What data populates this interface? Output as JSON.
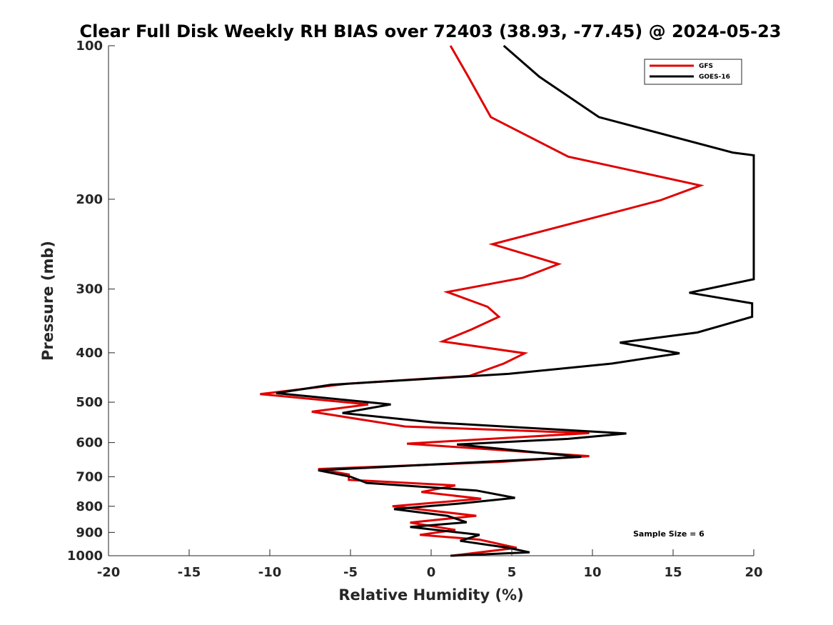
{
  "chart_data": {
    "type": "line",
    "title": "Clear Full Disk Weekly RH BIAS over 72403 (38.93, -77.45) @ 2024-05-23",
    "xlabel": "Relative Humidity (%)",
    "ylabel": "Pressure (mb)",
    "xlim": [
      -20,
      20
    ],
    "ylim": [
      100,
      1000
    ],
    "y_scale": "log",
    "y_reversed": true,
    "x_ticks": [
      -20,
      -15,
      -10,
      -5,
      0,
      5,
      10,
      15,
      20
    ],
    "y_ticks": [
      100,
      200,
      300,
      400,
      500,
      600,
      700,
      800,
      900,
      1000
    ],
    "grid": false,
    "legend_position": "top-right",
    "annotation": "Sample Size = 6",
    "series": [
      {
        "name": "GFS",
        "color": "#e00000",
        "points": [
          [
            1.2,
            100
          ],
          [
            2.3,
            115
          ],
          [
            3.7,
            138
          ],
          [
            8.5,
            165
          ],
          [
            16.7,
            188
          ],
          [
            14.2,
            201
          ],
          [
            3.8,
            245
          ],
          [
            7.9,
            268
          ],
          [
            5.7,
            285
          ],
          [
            1.0,
            304
          ],
          [
            3.5,
            325
          ],
          [
            4.2,
            340
          ],
          [
            2.5,
            360
          ],
          [
            0.7,
            380
          ],
          [
            5.8,
            401
          ],
          [
            4.5,
            420
          ],
          [
            2.4,
            444
          ],
          [
            -5.2,
            460
          ],
          [
            -10.6,
            482
          ],
          [
            -3.9,
            505
          ],
          [
            -7.4,
            522
          ],
          [
            -1.6,
            558
          ],
          [
            9.8,
            575
          ],
          [
            -1.5,
            603
          ],
          [
            9.8,
            638
          ],
          [
            4.2,
            655
          ],
          [
            -7.0,
            676
          ],
          [
            -5.1,
            693
          ],
          [
            -5.1,
            710
          ],
          [
            1.5,
            728
          ],
          [
            -0.6,
            750
          ],
          [
            3.1,
            773
          ],
          [
            -2.4,
            800
          ],
          [
            2.8,
            835
          ],
          [
            -1.3,
            861
          ],
          [
            1.5,
            890
          ],
          [
            -0.7,
            910
          ],
          [
            3.0,
            930
          ],
          [
            5.3,
            965
          ],
          [
            1.3,
            1000
          ]
        ]
      },
      {
        "name": "GOES-16",
        "color": "#000000",
        "points": [
          [
            4.5,
            100
          ],
          [
            6.7,
            115
          ],
          [
            10.4,
            138
          ],
          [
            18.7,
            162
          ],
          [
            20.0,
            164
          ],
          [
            20.0,
            287
          ],
          [
            16.0,
            305
          ],
          [
            19.9,
            320
          ],
          [
            19.9,
            340
          ],
          [
            16.5,
            365
          ],
          [
            11.7,
            382
          ],
          [
            15.4,
            401
          ],
          [
            11.2,
            420
          ],
          [
            4.8,
            440
          ],
          [
            -6.2,
            462
          ],
          [
            -9.6,
            480
          ],
          [
            -2.5,
            505
          ],
          [
            -5.5,
            525
          ],
          [
            0.2,
            548
          ],
          [
            12.1,
            576
          ],
          [
            8.5,
            590
          ],
          [
            1.6,
            605
          ],
          [
            9.3,
            640
          ],
          [
            -7.0,
            680
          ],
          [
            -5.0,
            700
          ],
          [
            -4.0,
            720
          ],
          [
            2.8,
            745
          ],
          [
            5.2,
            770
          ],
          [
            1.8,
            790
          ],
          [
            -2.3,
            810
          ],
          [
            1.0,
            835
          ],
          [
            2.2,
            860
          ],
          [
            -1.3,
            878
          ],
          [
            3.0,
            910
          ],
          [
            1.8,
            935
          ],
          [
            4.8,
            965
          ],
          [
            6.1,
            985
          ],
          [
            1.2,
            1000
          ]
        ]
      }
    ]
  }
}
